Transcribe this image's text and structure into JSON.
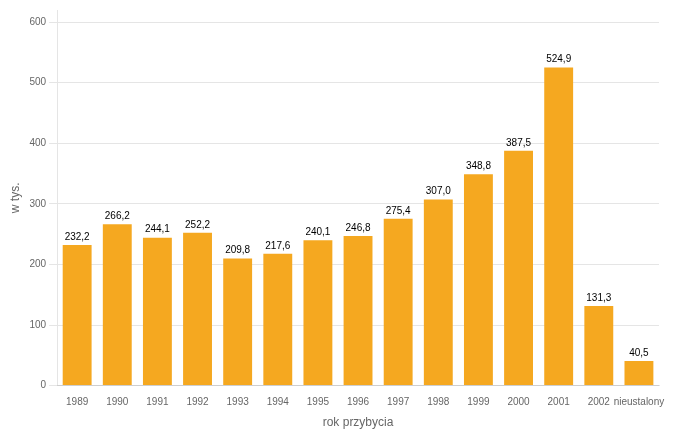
{
  "chart_data": {
    "type": "bar",
    "categories": [
      "1989",
      "1990",
      "1991",
      "1992",
      "1993",
      "1994",
      "1995",
      "1996",
      "1997",
      "1998",
      "1999",
      "2000",
      "2001",
      "2002",
      "nieustalony"
    ],
    "values": [
      232.2,
      266.2,
      244.1,
      252.2,
      209.8,
      217.6,
      240.1,
      246.8,
      275.4,
      307.0,
      348.8,
      387.5,
      524.9,
      131.3,
      40.5
    ],
    "value_labels": [
      "232,2",
      "266,2",
      "244,1",
      "252,2",
      "209,8",
      "217,6",
      "240,1",
      "246,8",
      "275,4",
      "307,0",
      "348,8",
      "387,5",
      "524,9",
      "131,3",
      "40,5"
    ],
    "data_labels": true,
    "color": "#F5A820",
    "xlabel": "rok przybycia",
    "ylabel": "w tys.",
    "ylim": [
      0,
      620
    ],
    "yticks": [
      0,
      100,
      200,
      300,
      400,
      500,
      600
    ],
    "grid": true
  }
}
